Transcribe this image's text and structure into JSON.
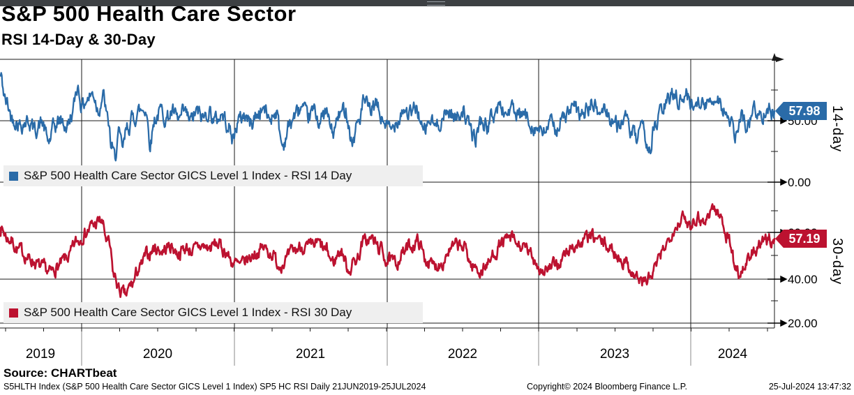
{
  "header": {
    "title": "S&P 500 Health Care Sector",
    "subtitle": "RSI 14-Day & 30-Day"
  },
  "panels": {
    "rsi14": {
      "legend": "S&P 500 Health Care Sector GICS Level 1 Index - RSI 14 Day",
      "axis_title": "14-day",
      "last_value_label": "57.98",
      "tick_labels": [
        "50.00",
        "0.00"
      ]
    },
    "rsi30": {
      "legend": "S&P 500 Health Care Sector GICS Level 1 Index - RSI 30 Day",
      "axis_title": "30-day",
      "last_value_label": "57.19",
      "tick_labels": [
        "60.00",
        "40.00",
        "20.00"
      ]
    }
  },
  "xaxis": {
    "years": [
      "2019",
      "2020",
      "2021",
      "2022",
      "2023",
      "2024"
    ]
  },
  "footer": {
    "source": "Source: CHARTbeat",
    "left": "S5HLTH Index (S&P 500 Health Care Sector GICS Level 1 Index) SP5 HC RSI  Daily 21JUN2019-25JUL2024",
    "center": "Copyright© 2024 Bloomberg Finance L.P.",
    "right": "25-Jul-2024 13:47:32"
  },
  "colors": {
    "rsi14": "#2A6BA8",
    "rsi30": "#BC1230",
    "grid": "#1a1a1a",
    "divider": "#3D4043",
    "legend_bg": "#EFEFEF"
  },
  "chart_data": [
    {
      "type": "line",
      "panel": "top",
      "title": "RSI 14 Day",
      "x": {
        "range": [
          "21JUN2019",
          "25JUL2024"
        ],
        "tick_labels": [
          "2019",
          "2020",
          "2021",
          "2022",
          "2023",
          "2024"
        ],
        "t_is": "fraction of time axis 21JUN2019 to 25JUL2024"
      },
      "y": {
        "label": "14-day",
        "visible_tick_values": [
          50,
          0
        ],
        "approx_range": [
          0,
          100
        ]
      },
      "grid": true,
      "legend_position": "bottom-left",
      "series": [
        {
          "name": "S&P 500 Health Care Sector GICS Level 1 Index - RSI 14 Day",
          "color": "#2A6BA8",
          "last_value": 57.98,
          "points_t_v": [
            [
              0,
              87
            ],
            [
              0.008,
              65
            ],
            [
              0.016,
              52
            ],
            [
              0.027,
              47
            ],
            [
              0.036,
              50
            ],
            [
              0.045,
              43
            ],
            [
              0.054,
              48
            ],
            [
              0.063,
              33
            ],
            [
              0.07,
              45
            ],
            [
              0.078,
              50
            ],
            [
              0.086,
              45
            ],
            [
              0.093,
              55
            ],
            [
              0.1,
              78
            ],
            [
              0.106,
              62
            ],
            [
              0.113,
              68
            ],
            [
              0.12,
              72
            ],
            [
              0.127,
              60
            ],
            [
              0.133,
              70
            ],
            [
              0.14,
              48
            ],
            [
              0.144,
              28
            ],
            [
              0.148,
              20
            ],
            [
              0.153,
              38
            ],
            [
              0.158,
              28
            ],
            [
              0.165,
              45
            ],
            [
              0.172,
              52
            ],
            [
              0.18,
              58
            ],
            [
              0.188,
              60
            ],
            [
              0.194,
              33
            ],
            [
              0.2,
              52
            ],
            [
              0.208,
              58
            ],
            [
              0.215,
              52
            ],
            [
              0.222,
              57
            ],
            [
              0.23,
              50
            ],
            [
              0.238,
              56
            ],
            [
              0.246,
              50
            ],
            [
              0.254,
              57
            ],
            [
              0.262,
              52
            ],
            [
              0.27,
              58
            ],
            [
              0.278,
              50
            ],
            [
              0.286,
              55
            ],
            [
              0.294,
              48
            ],
            [
              0.3,
              35
            ],
            [
              0.308,
              50
            ],
            [
              0.316,
              55
            ],
            [
              0.324,
              48
            ],
            [
              0.332,
              55
            ],
            [
              0.34,
              60
            ],
            [
              0.348,
              52
            ],
            [
              0.356,
              58
            ],
            [
              0.365,
              30
            ],
            [
              0.373,
              45
            ],
            [
              0.381,
              55
            ],
            [
              0.389,
              60
            ],
            [
              0.397,
              52
            ],
            [
              0.405,
              58
            ],
            [
              0.413,
              50
            ],
            [
              0.421,
              56
            ],
            [
              0.43,
              40
            ],
            [
              0.438,
              54
            ],
            [
              0.446,
              60
            ],
            [
              0.455,
              33
            ],
            [
              0.463,
              50
            ],
            [
              0.47,
              65
            ],
            [
              0.478,
              58
            ],
            [
              0.486,
              62
            ],
            [
              0.494,
              50
            ],
            [
              0.505,
              42
            ],
            [
              0.513,
              52
            ],
            [
              0.521,
              60
            ],
            [
              0.529,
              55
            ],
            [
              0.538,
              60
            ],
            [
              0.547,
              40
            ],
            [
              0.555,
              50
            ],
            [
              0.563,
              45
            ],
            [
              0.571,
              52
            ],
            [
              0.58,
              58
            ],
            [
              0.589,
              52
            ],
            [
              0.597,
              60
            ],
            [
              0.606,
              45
            ],
            [
              0.613,
              35
            ],
            [
              0.621,
              50
            ],
            [
              0.629,
              45
            ],
            [
              0.637,
              55
            ],
            [
              0.645,
              62
            ],
            [
              0.653,
              56
            ],
            [
              0.661,
              60
            ],
            [
              0.669,
              52
            ],
            [
              0.677,
              55
            ],
            [
              0.685,
              48
            ],
            [
              0.693,
              44
            ],
            [
              0.701,
              38
            ],
            [
              0.709,
              48
            ],
            [
              0.717,
              44
            ],
            [
              0.725,
              50
            ],
            [
              0.733,
              56
            ],
            [
              0.741,
              60
            ],
            [
              0.749,
              54
            ],
            [
              0.757,
              58
            ],
            [
              0.765,
              64
            ],
            [
              0.773,
              56
            ],
            [
              0.781,
              60
            ],
            [
              0.789,
              52
            ],
            [
              0.797,
              46
            ],
            [
              0.806,
              52
            ],
            [
              0.814,
              42
            ],
            [
              0.822,
              35
            ],
            [
              0.83,
              42
            ],
            [
              0.838,
              27
            ],
            [
              0.846,
              45
            ],
            [
              0.854,
              58
            ],
            [
              0.862,
              65
            ],
            [
              0.87,
              74
            ],
            [
              0.878,
              66
            ],
            [
              0.886,
              71
            ],
            [
              0.894,
              63
            ],
            [
              0.902,
              68
            ],
            [
              0.91,
              61
            ],
            [
              0.918,
              67
            ],
            [
              0.926,
              70
            ],
            [
              0.934,
              60
            ],
            [
              0.942,
              48
            ],
            [
              0.95,
              38
            ],
            [
              0.958,
              52
            ],
            [
              0.966,
              46
            ],
            [
              0.974,
              60
            ],
            [
              0.982,
              52
            ],
            [
              0.99,
              63
            ],
            [
              0.996,
              56
            ],
            [
              1,
              57.98
            ]
          ]
        }
      ]
    },
    {
      "type": "line",
      "panel": "bottom",
      "title": "RSI 30 Day",
      "x": {
        "range": [
          "21JUN2019",
          "25JUL2024"
        ],
        "tick_labels": [
          "2019",
          "2020",
          "2021",
          "2022",
          "2023",
          "2024"
        ],
        "t_is": "fraction of time axis 21JUN2019 to 25JUL2024"
      },
      "y": {
        "label": "30-day",
        "visible_tick_values": [
          60,
          40,
          20
        ],
        "approx_range": [
          15,
          78
        ]
      },
      "grid": true,
      "legend_position": "bottom-left",
      "series": [
        {
          "name": "S&P 500 Health Care Sector GICS Level 1 Index - RSI 30 Day",
          "color": "#BC1230",
          "last_value": 57.19,
          "points_t_v": [
            [
              0,
              62
            ],
            [
              0.012,
              57
            ],
            [
              0.025,
              52
            ],
            [
              0.04,
              48
            ],
            [
              0.055,
              44
            ],
            [
              0.065,
              42
            ],
            [
              0.075,
              45
            ],
            [
              0.088,
              49
            ],
            [
              0.1,
              56
            ],
            [
              0.11,
              60
            ],
            [
              0.12,
              63
            ],
            [
              0.13,
              65
            ],
            [
              0.14,
              55
            ],
            [
              0.148,
              40
            ],
            [
              0.155,
              34
            ],
            [
              0.162,
              32
            ],
            [
              0.17,
              37
            ],
            [
              0.18,
              44
            ],
            [
              0.19,
              50
            ],
            [
              0.2,
              53
            ],
            [
              0.21,
              52
            ],
            [
              0.22,
              54
            ],
            [
              0.23,
              51
            ],
            [
              0.24,
              53
            ],
            [
              0.25,
              52
            ],
            [
              0.26,
              54
            ],
            [
              0.27,
              53
            ],
            [
              0.28,
              55
            ],
            [
              0.29,
              52
            ],
            [
              0.3,
              47
            ],
            [
              0.31,
              45
            ],
            [
              0.32,
              48
            ],
            [
              0.33,
              51
            ],
            [
              0.34,
              53
            ],
            [
              0.35,
              51
            ],
            [
              0.36,
              46
            ],
            [
              0.37,
              48
            ],
            [
              0.38,
              52
            ],
            [
              0.39,
              54
            ],
            [
              0.4,
              53
            ],
            [
              0.41,
              55
            ],
            [
              0.42,
              52
            ],
            [
              0.43,
              47
            ],
            [
              0.44,
              52
            ],
            [
              0.45,
              44
            ],
            [
              0.46,
              48
            ],
            [
              0.47,
              56
            ],
            [
              0.48,
              57
            ],
            [
              0.49,
              53
            ],
            [
              0.5,
              48
            ],
            [
              0.51,
              46
            ],
            [
              0.52,
              51
            ],
            [
              0.53,
              54
            ],
            [
              0.54,
              56
            ],
            [
              0.55,
              48
            ],
            [
              0.56,
              45
            ],
            [
              0.57,
              47
            ],
            [
              0.58,
              52
            ],
            [
              0.59,
              54
            ],
            [
              0.6,
              53
            ],
            [
              0.61,
              45
            ],
            [
              0.62,
              43
            ],
            [
              0.63,
              46
            ],
            [
              0.64,
              52
            ],
            [
              0.65,
              56
            ],
            [
              0.66,
              57
            ],
            [
              0.67,
              54
            ],
            [
              0.68,
              52
            ],
            [
              0.69,
              48
            ],
            [
              0.7,
              43
            ],
            [
              0.71,
              44
            ],
            [
              0.72,
              46
            ],
            [
              0.73,
              50
            ],
            [
              0.74,
              54
            ],
            [
              0.75,
              55
            ],
            [
              0.76,
              58
            ],
            [
              0.77,
              57
            ],
            [
              0.78,
              55
            ],
            [
              0.79,
              52
            ],
            [
              0.8,
              49
            ],
            [
              0.81,
              46
            ],
            [
              0.82,
              41
            ],
            [
              0.83,
              38
            ],
            [
              0.84,
              40
            ],
            [
              0.85,
              47
            ],
            [
              0.86,
              55
            ],
            [
              0.87,
              62
            ],
            [
              0.88,
              66
            ],
            [
              0.89,
              64
            ],
            [
              0.9,
              67
            ],
            [
              0.91,
              65
            ],
            [
              0.92,
              71
            ],
            [
              0.93,
              67
            ],
            [
              0.94,
              58
            ],
            [
              0.95,
              45
            ],
            [
              0.955,
              42
            ],
            [
              0.965,
              47
            ],
            [
              0.975,
              52
            ],
            [
              0.985,
              55
            ],
            [
              0.995,
              57
            ],
            [
              1,
              57.19
            ]
          ]
        }
      ]
    }
  ]
}
